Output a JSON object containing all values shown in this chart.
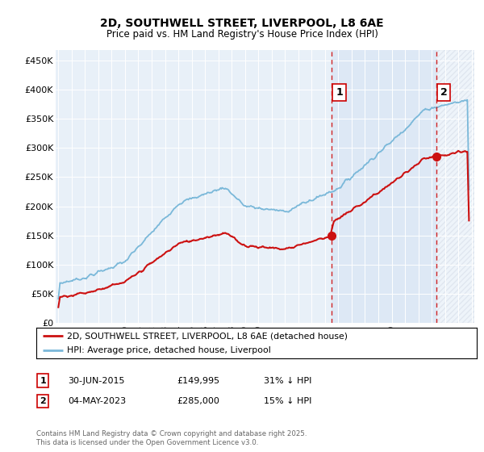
{
  "title": "2D, SOUTHWELL STREET, LIVERPOOL, L8 6AE",
  "subtitle": "Price paid vs. HM Land Registry's House Price Index (HPI)",
  "ylabel_ticks": [
    "£0",
    "£50K",
    "£100K",
    "£150K",
    "£200K",
    "£250K",
    "£300K",
    "£350K",
    "£400K",
    "£450K"
  ],
  "ytick_values": [
    0,
    50000,
    100000,
    150000,
    200000,
    250000,
    300000,
    350000,
    400000,
    450000
  ],
  "xlim_start": 1994.8,
  "xlim_end": 2026.2,
  "ylim_min": 0,
  "ylim_max": 468000,
  "hpi_color": "#7ab8d9",
  "price_color": "#cc1111",
  "shade_color": "#dce8f5",
  "marker1_x": 2015.5,
  "marker2_x": 2023.35,
  "sale1_price": 149995,
  "sale2_price": 285000,
  "legend_line1": "2D, SOUTHWELL STREET, LIVERPOOL, L8 6AE (detached house)",
  "legend_line2": "HPI: Average price, detached house, Liverpool",
  "footer": "Contains HM Land Registry data © Crown copyright and database right 2025.\nThis data is licensed under the Open Government Licence v3.0.",
  "plot_bg_color": "#e8f0f8"
}
